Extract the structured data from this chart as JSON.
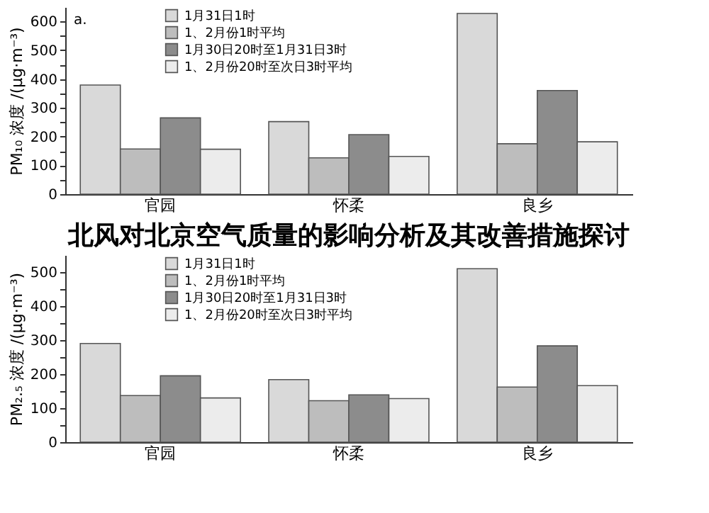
{
  "chart_data": [
    {
      "type": "bar",
      "categories": [
        "官园",
        "怀柔",
        "良乡"
      ],
      "ylabel": "PM₁₀ 浓度 /(μg·m⁻³)",
      "annotations": [
        "a."
      ],
      "ylim": [
        0,
        650
      ],
      "yticks": [
        0,
        {
          "value": 50,
          "label": null
        },
        100,
        {
          "value": 150,
          "label": null
        },
        200,
        {
          "value": 250,
          "label": null
        },
        300,
        {
          "value": 350,
          "label": null
        },
        400,
        {
          "value": 450,
          "label": null
        },
        500,
        {
          "value": 550,
          "label": null
        },
        600
      ],
      "legend": "top left",
      "grid": false,
      "series": [
        {
          "name": "1月31日1时",
          "color": "#d9d9d9",
          "values": [
            379,
            252,
            628
          ]
        },
        {
          "name": "1、2月份1时平均",
          "color": "#bdbdbd",
          "values": [
            157,
            126,
            175
          ]
        },
        {
          "name": "1月30日20时至1月31日3时",
          "color": "#8c8c8c",
          "values": [
            265,
            207,
            360
          ]
        },
        {
          "name": "1、2月份20时至次日3时平均",
          "color": "#ececec",
          "values": [
            156,
            131,
            182
          ]
        }
      ]
    },
    {
      "type": "bar",
      "title": "北风对北京空气质量的影响分析及其改善措施探讨",
      "categories": [
        "官园",
        "怀柔",
        "良乡"
      ],
      "ylabel": "PM₂.₅ 浓度 /(μg·m⁻³)",
      "ylim": [
        0,
        550
      ],
      "yticks": [
        0,
        {
          "value": 50,
          "label": null
        },
        100,
        {
          "value": 150,
          "label": null
        },
        200,
        {
          "value": 250,
          "label": null
        },
        300,
        {
          "value": 350,
          "label": null
        },
        400,
        {
          "value": 450,
          "label": null
        },
        500
      ],
      "legend": "top left",
      "grid": false,
      "series": [
        {
          "name": "1月31日1时",
          "color": "#d9d9d9",
          "values": [
            290,
            184,
            510
          ]
        },
        {
          "name": "1、2月份1时平均",
          "color": "#bdbdbd",
          "values": [
            137,
            122,
            162
          ]
        },
        {
          "name": "1月30日20时至1月31日3时",
          "color": "#8c8c8c",
          "values": [
            195,
            139,
            283
          ]
        },
        {
          "name": "1、2月份20时至次日3时平均",
          "color": "#ececec",
          "values": [
            130,
            128,
            166
          ]
        }
      ]
    }
  ]
}
